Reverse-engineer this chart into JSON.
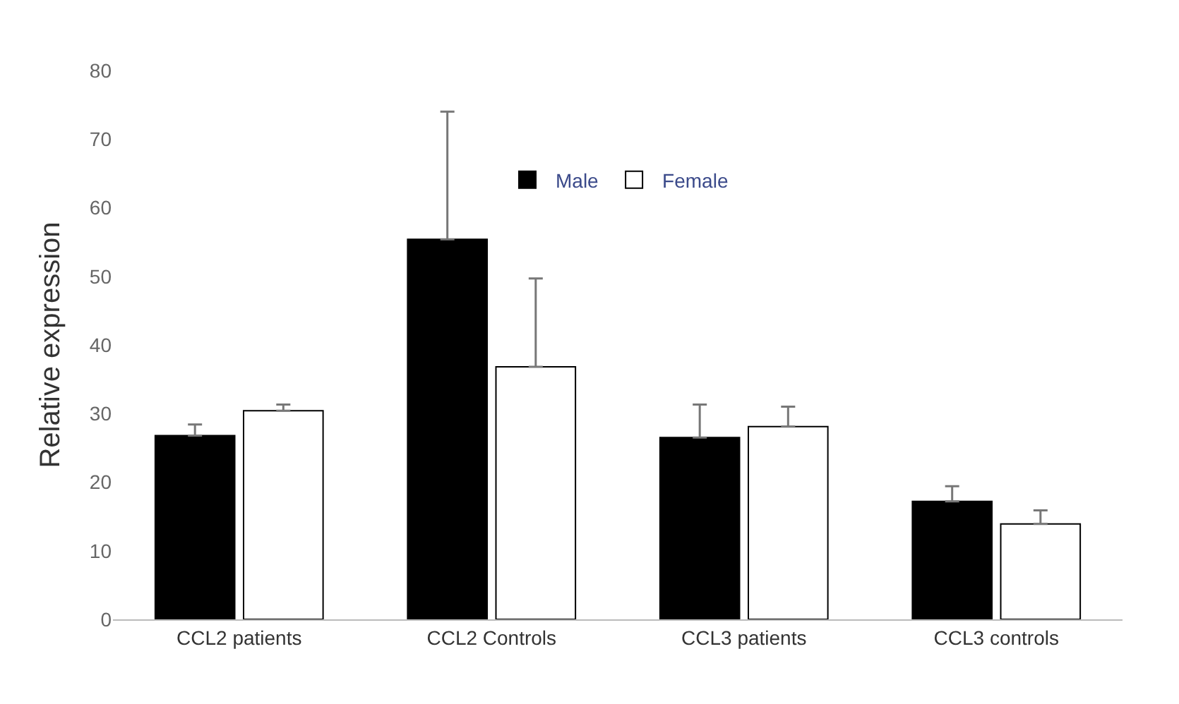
{
  "chart_data": {
    "type": "bar",
    "ylabel": "Relative expression",
    "categories": [
      "CCL2 patients",
      "CCL2 Controls",
      "CCL3 patients",
      "CCL3 controls"
    ],
    "series": [
      {
        "name": "Male",
        "color": "#000000",
        "values": [
          26.8,
          55.4,
          26.5,
          17.2
        ],
        "errors": [
          [
            26.8,
            28.4
          ],
          [
            55.4,
            74.0
          ],
          [
            26.5,
            31.3
          ],
          [
            17.2,
            19.4
          ]
        ]
      },
      {
        "name": "Female",
        "color": "#ffffff",
        "values": [
          30.4,
          36.8,
          28.1,
          13.9
        ],
        "errors": [
          [
            30.4,
            31.3
          ],
          [
            36.8,
            49.7
          ],
          [
            28.1,
            31.0
          ],
          [
            13.9,
            15.9
          ]
        ]
      }
    ],
    "ylim": [
      0,
      80
    ],
    "yticks": [
      0,
      10,
      20,
      30,
      40,
      50,
      60,
      70,
      80
    ],
    "grid": false,
    "legend": "top"
  }
}
